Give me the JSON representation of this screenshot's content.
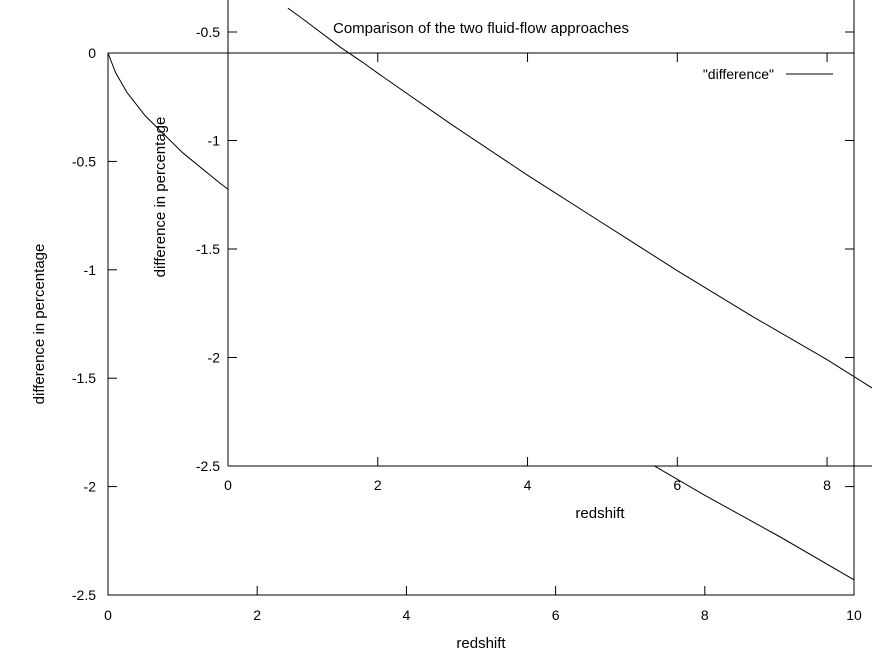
{
  "chart_data": [
    {
      "type": "line",
      "xlabel": "redshift",
      "ylabel": "difference in percentage",
      "xlim": [
        0,
        10
      ],
      "ylim": [
        -2.5,
        0
      ],
      "xticks": [
        "0",
        "2",
        "4",
        "6",
        "8",
        "10"
      ],
      "yticks": [
        "0",
        "-0.5",
        "-1",
        "-1.5",
        "-2",
        "-2.5"
      ],
      "series": [
        {
          "x": [
            0,
            0.1,
            0.25,
            0.5,
            1,
            1.5,
            2,
            3,
            4,
            5,
            6,
            7,
            8,
            9,
            10
          ],
          "y": [
            0,
            -0.09,
            -0.18,
            -0.29,
            -0.46,
            -0.6,
            -0.73,
            -0.97,
            -1.2,
            -1.42,
            -1.63,
            -1.84,
            -2.04,
            -2.23,
            -2.43
          ]
        }
      ]
    },
    {
      "type": "line",
      "title": "Comparison of the two fluid-flow approaches",
      "xlabel": "redshift",
      "ylabel": "difference in percentage",
      "xlim": [
        0,
        8.6
      ],
      "ylim": [
        -2.5,
        -0.4
      ],
      "xticks": [
        "0",
        "2",
        "4",
        "6",
        "8"
      ],
      "yticks": [
        "-0.5",
        "-1",
        "-1.5",
        "-2",
        "-2.5"
      ],
      "legend": "top-right",
      "series": [
        {
          "name": "\"difference\"",
          "x": [
            0.8,
            1,
            1.5,
            1.8,
            2,
            3,
            4,
            5,
            6,
            7,
            8,
            8.6
          ],
          "y": [
            -0.39,
            -0.44,
            -0.57,
            -0.64,
            -0.69,
            -0.93,
            -1.16,
            -1.38,
            -1.6,
            -1.81,
            -2.01,
            -2.14
          ]
        }
      ]
    }
  ]
}
